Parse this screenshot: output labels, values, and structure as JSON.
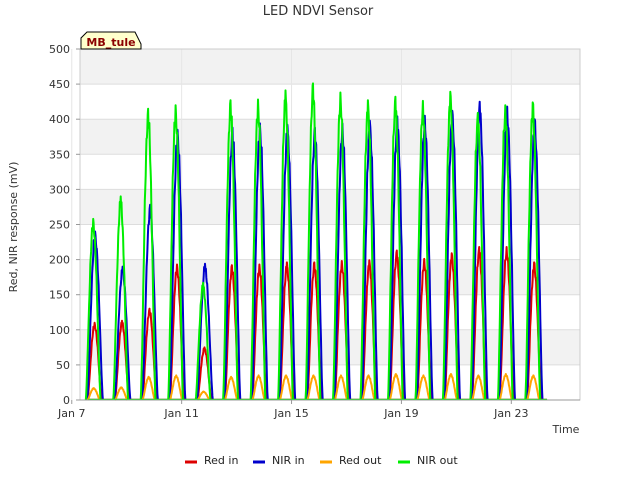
{
  "chart_data": {
    "type": "line",
    "title": "LED NDVI Sensor",
    "badge": "MB_tule",
    "xlabel": "Time",
    "ylabel": "Red, NIR response (mV)",
    "xlim": [
      7.3,
      25.5
    ],
    "ylim": [
      0,
      500
    ],
    "yticks": [
      0,
      50,
      100,
      150,
      200,
      250,
      300,
      350,
      400,
      450,
      500
    ],
    "xticks": [
      {
        "value": 7,
        "label": "Jan 7"
      },
      {
        "value": 11,
        "label": "Jan 11"
      },
      {
        "value": 15,
        "label": "Jan 15"
      },
      {
        "value": 19,
        "label": "Jan 19"
      },
      {
        "value": 23,
        "label": "Jan 23"
      }
    ],
    "grid": true,
    "background_bands": true,
    "legend_position": "bottom",
    "day_peaks": {
      "days": [
        7.8,
        8.8,
        9.8,
        10.8,
        11.8,
        12.8,
        13.8,
        14.8,
        15.8,
        16.8,
        17.8,
        18.8,
        19.8,
        20.8,
        21.8,
        22.8,
        23.8
      ],
      "note": "daily peak values per series (mV)"
    },
    "series": [
      {
        "name": "Red in",
        "color": "#dd0000",
        "values": [
          110,
          113,
          130,
          193,
          75,
          192,
          193,
          196,
          196,
          198,
          199,
          213,
          201,
          209,
          218,
          218,
          196
        ]
      },
      {
        "name": "NIR in",
        "color": "#0000cc",
        "values": [
          240,
          190,
          278,
          385,
          194,
          388,
          394,
          392,
          388,
          394,
          398,
          404,
          405,
          412,
          425,
          418,
          400
        ]
      },
      {
        "name": "Red out",
        "color": "#ffa500",
        "values": [
          17,
          18,
          33,
          35,
          12,
          33,
          35,
          35,
          35,
          35,
          35,
          37,
          35,
          37,
          35,
          37,
          35
        ]
      },
      {
        "name": "NIR out",
        "color": "#00ee00",
        "values": [
          258,
          290,
          415,
          420,
          167,
          427,
          428,
          441,
          451,
          438,
          427,
          432,
          426,
          439,
          409,
          420,
          424
        ]
      }
    ]
  }
}
